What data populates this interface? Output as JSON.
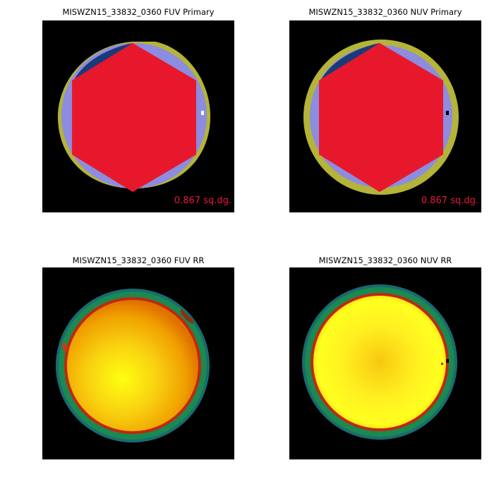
{
  "panels": [
    {
      "title": "MISWZN15_33832_0360 FUV Primary",
      "area": "0.867 sq.dg."
    },
    {
      "title": "MISWZN15_33832_0360 NUV Primary",
      "area": "0.867 sq.dg."
    },
    {
      "title": "MISWZN15_33832_0360 FUV RR"
    },
    {
      "title": "MISWZN15_33832_0360 NUV RR"
    }
  ],
  "colors": {
    "background": "#000000",
    "coverage_ring": "#b4b33a",
    "footprint_fill": "#8c8ce0",
    "dark_wedge": "#1b3a7a",
    "hexagon": "#e8182c",
    "area_text": "#e8183a",
    "rr_core": "#ffff10",
    "rr_mid": "#f0b000",
    "rr_edge_red": "#c02810",
    "rr_ring_green": "#1a8a50",
    "rr_ring_teal": "#1a6a70"
  }
}
